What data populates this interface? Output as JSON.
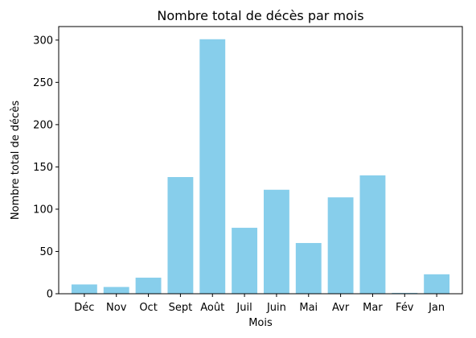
{
  "chart_data": {
    "type": "bar",
    "title": "Nombre total de décès par mois",
    "xlabel": "Mois",
    "ylabel": "Nombre total de décès",
    "categories": [
      "Déc",
      "Nov",
      "Oct",
      "Sept",
      "Août",
      "Juil",
      "Juin",
      "Mai",
      "Avr",
      "Mar",
      "Fév",
      "Jan"
    ],
    "values": [
      11,
      8,
      19,
      138,
      301,
      78,
      123,
      60,
      114,
      140,
      1,
      23
    ],
    "ylim": [
      0,
      316
    ],
    "yticks": [
      0,
      50,
      100,
      150,
      200,
      250,
      300
    ],
    "bar_color": "#87ceeb",
    "grid": false,
    "legend": false
  }
}
